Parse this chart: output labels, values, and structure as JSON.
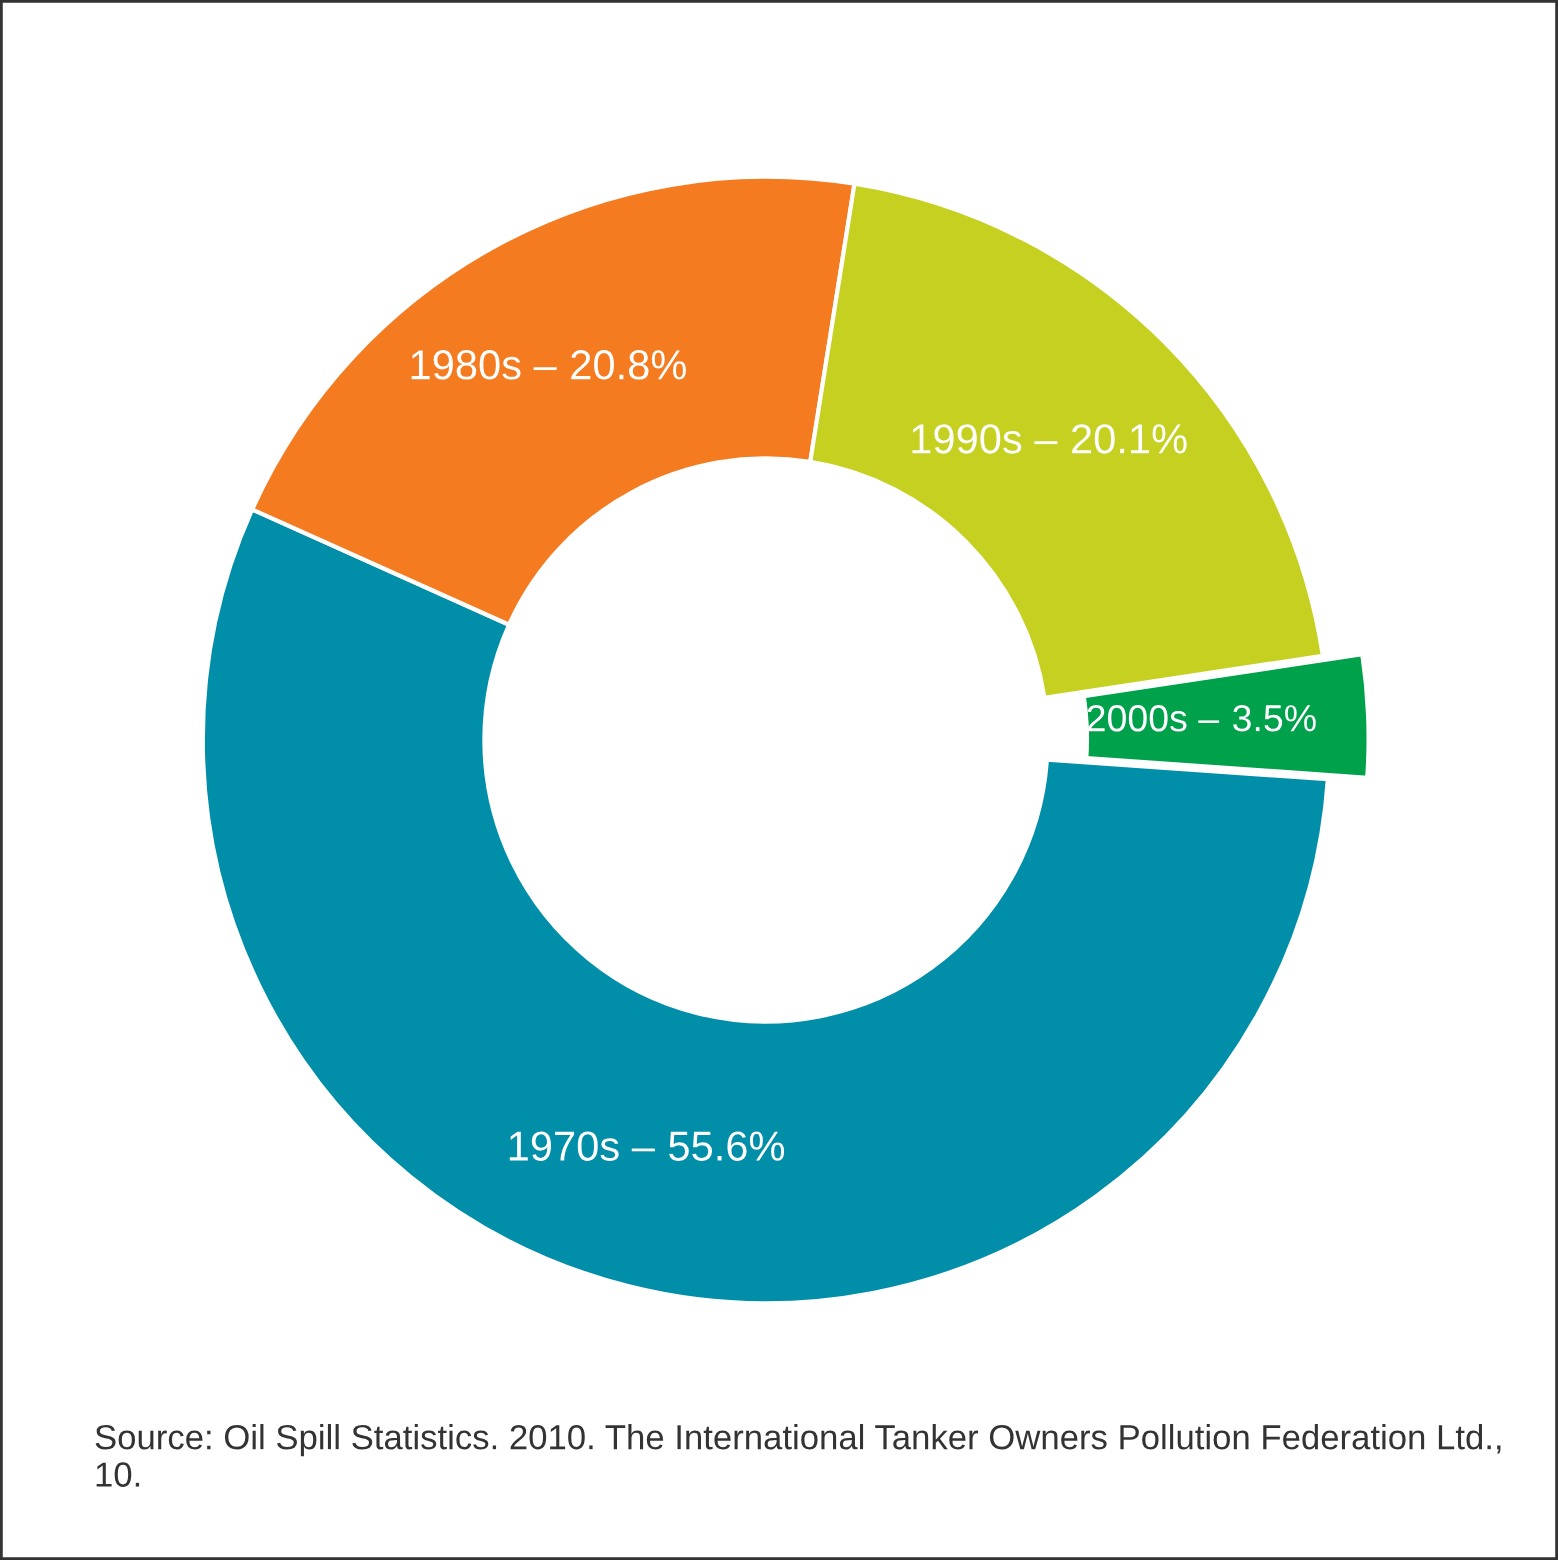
{
  "chart_data": {
    "type": "donut",
    "categories": [
      "1970s –",
      "1980s –",
      "1990s –",
      "2000s –"
    ],
    "values": [
      55.6,
      20.8,
      20.1,
      3.5
    ],
    "colors": [
      "#008ea9",
      "#f47b20",
      "#c5d021",
      "#00a14b"
    ],
    "value_labels": [
      "55.6%",
      "20.8%",
      "20.1%",
      "3.5%"
    ],
    "annotations": [
      "Source: Oil Spill Statistics. 2010. The International Tanker Owners Pollution Federation Ltd., 10."
    ]
  }
}
